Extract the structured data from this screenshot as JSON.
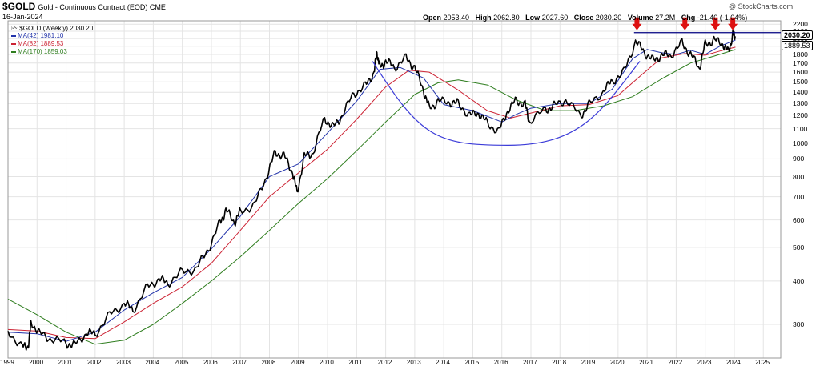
{
  "header": {
    "symbol": "$GOLD",
    "subtitle": "Gold - Continuous Contract (EOD) CME",
    "date": "16-Jan-2024",
    "watermark": "@ StockCharts.com",
    "open_label": "Open",
    "open": "2053.40",
    "high_label": "High",
    "high": "2062.80",
    "low_label": "Low",
    "low": "2027.60",
    "close_label": "Close",
    "close": "2030.20",
    "volume_label": "Volume",
    "volume": "27.2M",
    "chg_label": "Chg",
    "chg": "-21.40 (-1.04%)"
  },
  "legend": {
    "price": "$GOLD (Weekly) 2030.20",
    "ma42": "MA(42) 1981.10",
    "ma82": "MA(82) 1889.53",
    "ma170": "MA(170) 1859.03"
  },
  "colors": {
    "price": "#000000",
    "ma42": "#2233aa",
    "ma82": "#cc2233",
    "ma170": "#2e7d1e",
    "arc": "#3b3bd8",
    "resistance": "#000080",
    "arrow": "#dd1111",
    "grid": "#e4e4e4"
  },
  "last_value_tags": [
    "2030.20",
    "1889.53"
  ],
  "chart_data": {
    "type": "line",
    "title": "$GOLD (Weekly)",
    "scale": "log",
    "ylim": [
      240,
      2250
    ],
    "xlim": [
      1999.0,
      2025.6
    ],
    "y_ticks": [
      300,
      400,
      500,
      600,
      700,
      800,
      900,
      1000,
      1100,
      1200,
      1300,
      1400,
      1500,
      1600,
      1700,
      1800,
      1900,
      2000,
      2100,
      2200
    ],
    "x_ticks": [
      "1999",
      "2000",
      "2001",
      "2002",
      "2003",
      "2004",
      "2005",
      "2006",
      "2007",
      "2008",
      "2009",
      "2010",
      "2011",
      "2012",
      "2013",
      "2014",
      "2015",
      "2016",
      "2017",
      "2018",
      "2019",
      "2020",
      "2021",
      "2022",
      "2023",
      "2024",
      "2025"
    ],
    "grid": true,
    "legend_position": "top-left",
    "series": [
      {
        "name": "$GOLD (Weekly)",
        "x": [
          1999.0,
          1999.5,
          1999.7,
          1999.8,
          2000.1,
          2000.5,
          2001.0,
          2001.3,
          2001.7,
          2002.0,
          2002.5,
          2003.0,
          2003.3,
          2003.8,
          2004.2,
          2004.5,
          2005.0,
          2005.5,
          2005.9,
          2006.3,
          2006.5,
          2006.8,
          2007.0,
          2007.5,
          2007.9,
          2008.2,
          2008.5,
          2008.8,
          2008.95,
          2009.2,
          2009.5,
          2009.9,
          2010.2,
          2010.5,
          2010.9,
          2011.3,
          2011.6,
          2011.7,
          2011.8,
          2012.0,
          2012.3,
          2012.7,
          2013.0,
          2013.3,
          2013.5,
          2013.8,
          2014.2,
          2014.5,
          2014.9,
          2015.2,
          2015.5,
          2015.9,
          2016.2,
          2016.5,
          2016.8,
          2016.95,
          2017.5,
          2017.8,
          2018.2,
          2018.7,
          2019.0,
          2019.5,
          2019.8,
          2020.2,
          2020.6,
          2020.9,
          2021.2,
          2021.5,
          2021.8,
          2022.2,
          2022.5,
          2022.8,
          2023.0,
          2023.3,
          2023.6,
          2023.8,
          2023.95,
          2024.04
        ],
        "y": [
          287,
          258,
          260,
          305,
          282,
          272,
          265,
          262,
          283,
          282,
          320,
          345,
          330,
          385,
          405,
          395,
          425,
          435,
          495,
          590,
          640,
          590,
          635,
          665,
          800,
          940,
          920,
          820,
          720,
          915,
          935,
          1180,
          1110,
          1200,
          1390,
          1460,
          1600,
          1830,
          1650,
          1720,
          1650,
          1760,
          1650,
          1420,
          1260,
          1320,
          1310,
          1300,
          1200,
          1220,
          1140,
          1080,
          1240,
          1330,
          1290,
          1150,
          1250,
          1280,
          1330,
          1200,
          1290,
          1410,
          1510,
          1600,
          1960,
          1830,
          1730,
          1790,
          1790,
          1940,
          1800,
          1640,
          1930,
          1980,
          1930,
          1830,
          2050,
          2030
        ]
      },
      {
        "name": "MA(42)",
        "x": [
          1999.0,
          2000.0,
          2001.0,
          2002.0,
          2003.0,
          2004.0,
          2005.0,
          2006.0,
          2007.0,
          2008.0,
          2009.0,
          2010.0,
          2011.0,
          2011.8,
          2012.5,
          2013.3,
          2014.0,
          2015.0,
          2016.0,
          2016.5,
          2017.0,
          2018.0,
          2019.0,
          2019.8,
          2020.5,
          2021.0,
          2021.5,
          2022.0,
          2022.5,
          2023.0,
          2023.5,
          2024.04
        ],
        "y": [
          285,
          282,
          268,
          285,
          330,
          370,
          410,
          495,
          615,
          800,
          870,
          1070,
          1320,
          1630,
          1650,
          1540,
          1290,
          1240,
          1150,
          1210,
          1260,
          1300,
          1300,
          1430,
          1750,
          1860,
          1820,
          1800,
          1850,
          1800,
          1900,
          1981
        ]
      },
      {
        "name": "MA(82)",
        "x": [
          1999.0,
          2000.0,
          2001.0,
          2002.0,
          2003.0,
          2004.0,
          2005.0,
          2006.0,
          2007.0,
          2008.0,
          2009.0,
          2010.0,
          2011.0,
          2012.0,
          2012.8,
          2013.5,
          2014.5,
          2015.5,
          2016.3,
          2017.0,
          2018.0,
          2019.0,
          2020.0,
          2020.8,
          2021.5,
          2022.3,
          2023.0,
          2023.5,
          2024.04
        ],
        "y": [
          290,
          287,
          275,
          273,
          305,
          345,
          385,
          450,
          560,
          700,
          820,
          960,
          1170,
          1450,
          1620,
          1600,
          1420,
          1240,
          1180,
          1220,
          1280,
          1290,
          1370,
          1570,
          1760,
          1810,
          1790,
          1840,
          1889
        ]
      },
      {
        "name": "MA(170)",
        "x": [
          1999.0,
          2000.0,
          2001.0,
          2002.0,
          2003.0,
          2004.0,
          2005.0,
          2006.0,
          2007.0,
          2008.0,
          2009.0,
          2010.0,
          2011.0,
          2012.0,
          2013.0,
          2013.8,
          2014.5,
          2015.5,
          2016.5,
          2017.5,
          2018.5,
          2019.5,
          2020.5,
          2021.5,
          2022.5,
          2023.3,
          2024.04
        ],
        "y": [
          355,
          320,
          285,
          263,
          270,
          300,
          345,
          400,
          470,
          560,
          670,
          790,
          950,
          1150,
          1380,
          1490,
          1520,
          1470,
          1330,
          1240,
          1240,
          1280,
          1360,
          1530,
          1700,
          1780,
          1859
        ]
      }
    ],
    "annotations": {
      "resistance_level": 2080,
      "resistance_from": 2020.55,
      "cup_arc": {
        "x_start": 2011.55,
        "x_end": 2020.75,
        "y_start": 1720,
        "y_bottom": 985,
        "x_bottom": 2016.2
      },
      "arrows_at": [
        2020.65,
        2022.3,
        2023.35,
        2023.95
      ]
    }
  }
}
